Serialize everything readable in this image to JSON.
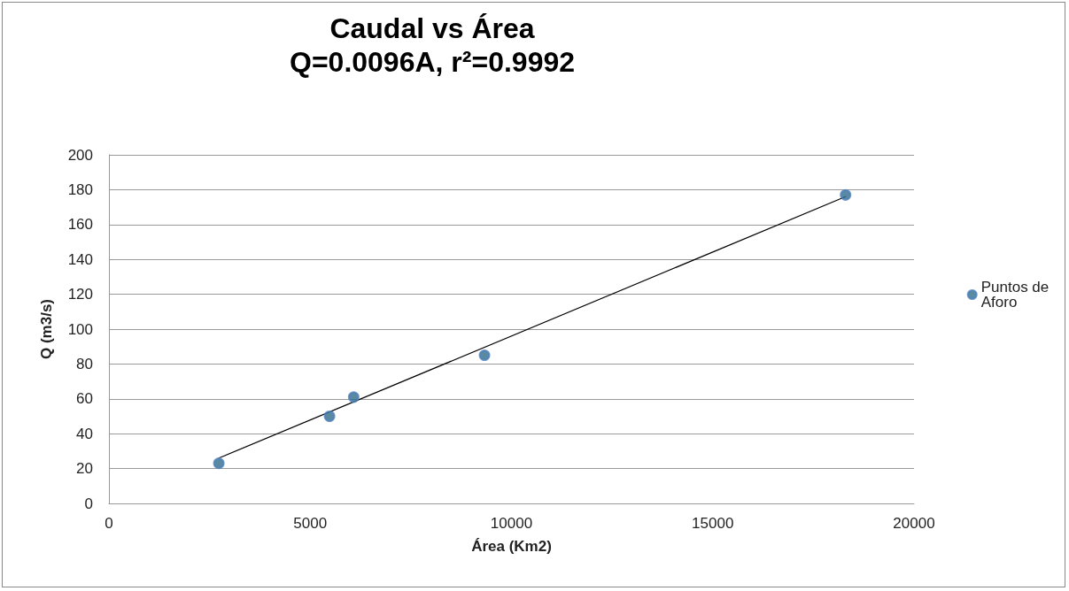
{
  "chart_data": {
    "type": "scatter",
    "title": "Caudal vs Área",
    "subtitle": "Q=0.0096A, r²=0.9992",
    "xlabel": "Área (Km2)",
    "ylabel": "Q (m3/s)",
    "series": [
      {
        "name": "Puntos de Aforo",
        "color": "#2f6b8c",
        "x": [
          2730,
          5480,
          6080,
          9330,
          18300
        ],
        "values": [
          23,
          50,
          61,
          85,
          177
        ]
      },
      {
        "type": "line",
        "color": "#000000",
        "x": [
          2730,
          18300
        ],
        "values": [
          26,
          176
        ],
        "marker": "none"
      }
    ],
    "xlim": [
      0,
      20000
    ],
    "xticks": [
      0,
      5000,
      10000,
      15000,
      20000
    ],
    "ylim": [
      0,
      200
    ],
    "yticks": [
      0,
      20,
      40,
      60,
      80,
      100,
      120,
      140,
      160,
      180,
      200
    ],
    "grid": "y",
    "legend": "right",
    "marker": "circle",
    "line_style": "solid"
  }
}
